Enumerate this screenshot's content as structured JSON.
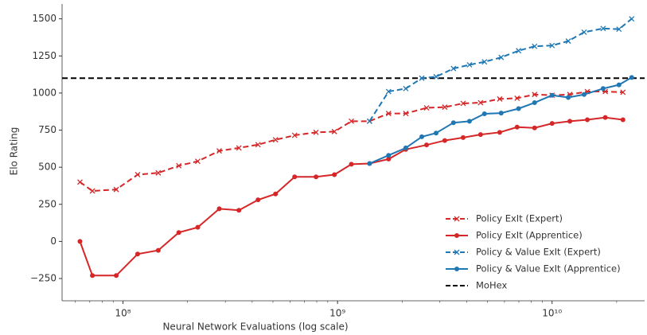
{
  "chart_data": {
    "type": "line",
    "x_label": "Neural Network Evaluations (log scale)",
    "y_label": "Elo Rating",
    "xscale": "log",
    "xlim": [
      52000000,
      27000000000
    ],
    "ylim": [
      -400,
      1600
    ],
    "xticks": [
      {
        "value": 100000000,
        "label": "10⁸"
      },
      {
        "value": 1000000000,
        "label": "10⁹"
      },
      {
        "value": 10000000000,
        "label": "10¹⁰"
      }
    ],
    "yticks": [
      {
        "value": -250,
        "label": "−250"
      },
      0,
      250,
      500,
      750,
      1000,
      1250,
      1500
    ],
    "legend": "lower right",
    "series": [
      {
        "name": "Policy ExIt (Expert)",
        "color": "#d62728",
        "dashed": true,
        "marker": "x",
        "x": [
          63000000,
          72000000,
          93000000,
          117000000,
          146000000,
          182000000,
          223000000,
          281000000,
          347000000,
          426000000,
          514000000,
          631000000,
          794000000,
          967000000,
          1160000000,
          1410000000,
          1730000000,
          2080000000,
          2600000000,
          3160000000,
          3850000000,
          4640000000,
          5700000000,
          6870000000,
          8290000000,
          10000000000,
          12100000000,
          14600000000,
          17700000000,
          21400000000
        ],
        "values": [
          400,
          340,
          350,
          450,
          462,
          510,
          540,
          610,
          630,
          652,
          685,
          715,
          735,
          740,
          810,
          810,
          862,
          862,
          900,
          905,
          930,
          935,
          960,
          965,
          990,
          985,
          990,
          1010,
          1010,
          1005
        ]
      },
      {
        "name": "Policy ExIt (Apprentice)",
        "color": "#d62728",
        "dashed": false,
        "marker": "o",
        "x": [
          63000000,
          72000000,
          93000000,
          117000000,
          146000000,
          182000000,
          223000000,
          281000000,
          347000000,
          426000000,
          514000000,
          631000000,
          794000000,
          967000000,
          1160000000,
          1410000000,
          1730000000,
          2080000000,
          2600000000,
          3160000000,
          3850000000,
          4640000000,
          5700000000,
          6870000000,
          8290000000,
          10000000000,
          12100000000,
          14600000000,
          17700000000,
          21400000000
        ],
        "values": [
          0,
          -230,
          -230,
          -85,
          -60,
          60,
          95,
          220,
          210,
          280,
          320,
          435,
          435,
          450,
          520,
          525,
          555,
          620,
          650,
          680,
          700,
          720,
          735,
          770,
          765,
          795,
          810,
          820,
          835,
          820
        ]
      },
      {
        "name": "Policy & Value ExIt (Expert)",
        "color": "#1f77b4",
        "dashed": true,
        "marker": "x",
        "x": [
          1410000000,
          1730000000,
          2080000000,
          2470000000,
          2880000000,
          3470000000,
          4120000000,
          4840000000,
          5790000000,
          6980000000,
          8290000000,
          10000000000,
          11900000000,
          14100000000,
          17300000000,
          20500000000,
          23500000000
        ],
        "values": [
          810,
          1010,
          1030,
          1100,
          1110,
          1165,
          1190,
          1210,
          1240,
          1285,
          1315,
          1320,
          1350,
          1410,
          1435,
          1430,
          1500
        ]
      },
      {
        "name": "Policy & Value ExIt (Apprentice)",
        "color": "#1f77b4",
        "dashed": false,
        "marker": "o",
        "x": [
          1410000000,
          1730000000,
          2080000000,
          2470000000,
          2880000000,
          3470000000,
          4120000000,
          4840000000,
          5790000000,
          6980000000,
          8290000000,
          10000000000,
          11900000000,
          14100000000,
          17300000000,
          20500000000,
          23500000000
        ],
        "values": [
          525,
          580,
          630,
          705,
          730,
          800,
          810,
          860,
          865,
          895,
          935,
          985,
          970,
          990,
          1030,
          1055,
          1105
        ]
      }
    ],
    "reference_line": {
      "name": "MoHex",
      "value": 1100,
      "color": "#000000"
    }
  }
}
